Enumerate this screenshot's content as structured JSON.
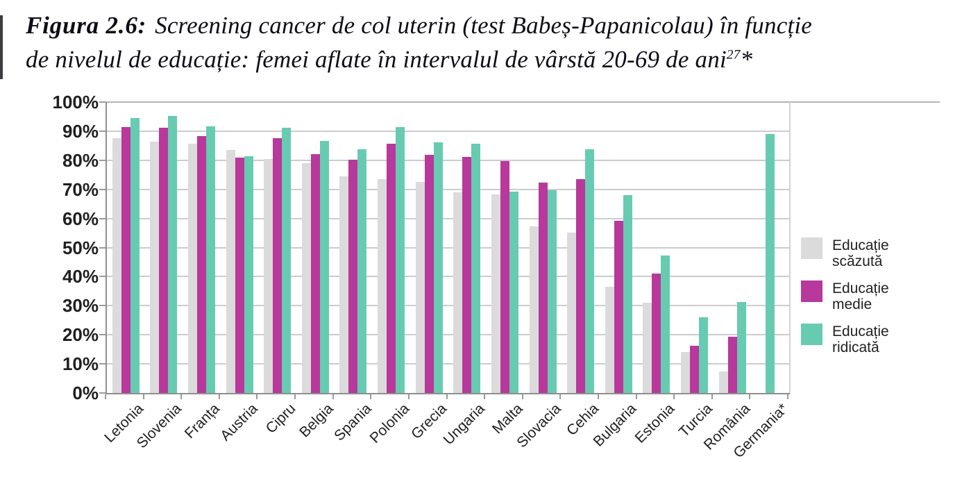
{
  "figure": {
    "label": "Figura 2.6:",
    "title_line1": "Screening cancer de col uterin (test Babeș-Papanicolau) în funcție",
    "title_line2": "de nivelul de educație: femei aflate în intervalul de vârstă 20-69 de ani",
    "title_superscript": "27",
    "title_footnote_marker": "*"
  },
  "chart_data": {
    "type": "bar",
    "categories": [
      "Letonia",
      "Slovenia",
      "Franța",
      "Austria",
      "Cipru",
      "Belgia",
      "Spania",
      "Polonia",
      "Grecia",
      "Ungaria",
      "Malta",
      "Slovacia",
      "Cehia",
      "Bulgaria",
      "Estonia",
      "Turcia",
      "România",
      "Germania*"
    ],
    "series": [
      {
        "name": "Educație scăzută",
        "color": "#dbdbdb",
        "values": [
          87.7,
          86.4,
          85.6,
          83.5,
          80.4,
          79.0,
          74.5,
          73.6,
          72.5,
          68.9,
          68.2,
          57.4,
          55.2,
          36.4,
          31.0,
          14.0,
          7.5,
          null
        ]
      },
      {
        "name": "Educație medie",
        "color": "#b8389b",
        "values": [
          91.5,
          91.1,
          88.4,
          80.8,
          87.7,
          82.0,
          80.1,
          85.7,
          81.9,
          81.2,
          79.7,
          72.3,
          73.4,
          59.2,
          41.0,
          16.3,
          19.4,
          null
        ]
      },
      {
        "name": "Educație ridicată",
        "color": "#67cbb1",
        "values": [
          94.6,
          95.3,
          91.6,
          81.4,
          91.1,
          86.7,
          83.8,
          91.5,
          86.1,
          85.6,
          69.1,
          69.7,
          83.7,
          68.1,
          47.3,
          26.0,
          31.3,
          89.1
        ]
      }
    ],
    "title": "Screening cancer de col uterin (test Babeș-Papanicolau) în funcție de nivelul de educație: femei aflate în intervalul de vârstă 20-69 de ani",
    "xlabel": "",
    "ylabel": "",
    "ylim": [
      0,
      100
    ],
    "y_tick_step": 10,
    "y_tick_labels": [
      "0%",
      "10%",
      "20%",
      "30%",
      "40%",
      "50%",
      "60%",
      "70%",
      "80%",
      "90%",
      "100%"
    ],
    "grid": true,
    "legend_position": "right"
  },
  "colors": {
    "gridline": "#cccccc",
    "axis": "#8f8f8f",
    "tick_text": "#1f1f1f",
    "title_text": "#0d0d16"
  }
}
